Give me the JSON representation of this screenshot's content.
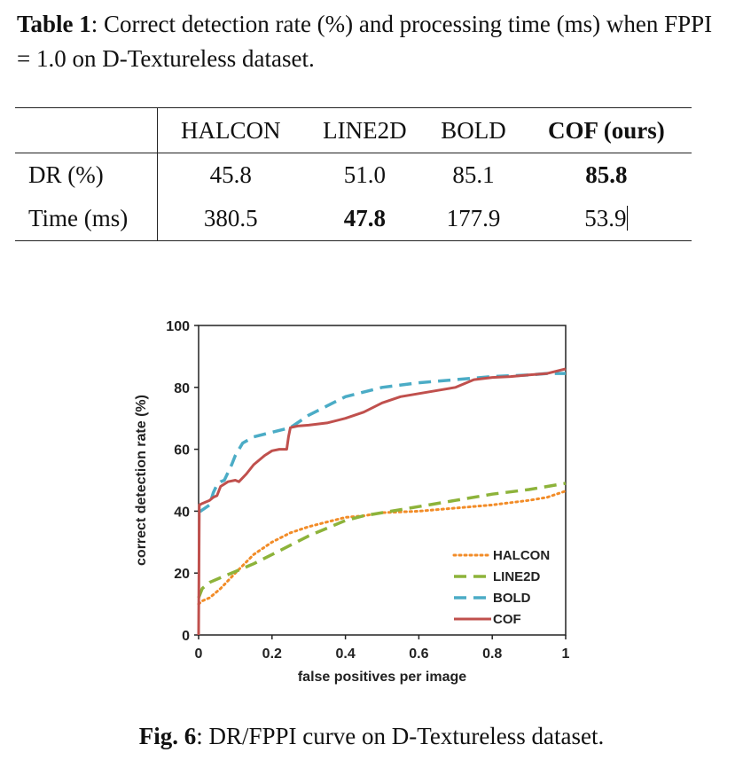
{
  "table_caption": {
    "label": "Table 1",
    "text": ": Correct detection rate (%) and processing time (ms) when FPPI = 1.0 on D-Textureless dataset."
  },
  "table": {
    "columns": [
      "",
      "HALCON",
      "LINE2D",
      "BOLD",
      "COF (ours)"
    ],
    "rows": [
      {
        "label": "DR (%)",
        "values": [
          "45.8",
          "51.0",
          "85.1",
          "85.8"
        ]
      },
      {
        "label": "Time (ms)",
        "values": [
          "380.5",
          "47.8",
          "177.9",
          "53.9"
        ]
      }
    ]
  },
  "chart_data": {
    "type": "line",
    "xlabel": "false positives per image",
    "ylabel": "correct detection rate (%)",
    "xlim": [
      0,
      1
    ],
    "ylim": [
      0,
      100
    ],
    "xticks": [
      "0",
      "0.2",
      "0.4",
      "0.6",
      "0.8",
      "1"
    ],
    "yticks": [
      "0",
      "20",
      "40",
      "60",
      "80",
      "100"
    ],
    "legend_position": "bottom-right",
    "series": [
      {
        "name": "HALCON",
        "color": "#F28C28",
        "style": "dotted",
        "x": [
          0.0,
          0.01,
          0.03,
          0.06,
          0.1,
          0.15,
          0.2,
          0.25,
          0.3,
          0.35,
          0.4,
          0.45,
          0.5,
          0.6,
          0.7,
          0.8,
          0.9,
          0.95,
          1.0
        ],
        "y": [
          10,
          11,
          12,
          15,
          20,
          26,
          30,
          33,
          35,
          36.5,
          38,
          38.5,
          39.5,
          40,
          41,
          42,
          43.5,
          44.5,
          46.5
        ]
      },
      {
        "name": "LINE2D",
        "color": "#8DB33A",
        "style": "dashed",
        "x": [
          0.0,
          0.01,
          0.03,
          0.06,
          0.1,
          0.15,
          0.2,
          0.3,
          0.4,
          0.45,
          0.5,
          0.6,
          0.7,
          0.8,
          0.9,
          1.0
        ],
        "y": [
          12,
          15,
          17,
          18.5,
          20.5,
          23,
          26,
          32,
          37,
          38.5,
          39.5,
          41.5,
          43.5,
          45.5,
          47,
          49
        ]
      },
      {
        "name": "BOLD",
        "color": "#4BACC6",
        "style": "dashed",
        "x": [
          0.0,
          0.005,
          0.03,
          0.04,
          0.05,
          0.06,
          0.07,
          0.09,
          0.1,
          0.12,
          0.15,
          0.2,
          0.25,
          0.3,
          0.35,
          0.4,
          0.5,
          0.6,
          0.7,
          0.8,
          0.9,
          0.95,
          1.0
        ],
        "y": [
          40,
          40,
          42,
          46,
          48.5,
          49.5,
          50,
          55,
          58,
          62,
          64,
          65.5,
          67,
          71,
          74,
          77,
          80,
          81.5,
          82.5,
          83.5,
          84,
          84.5,
          84.5
        ]
      },
      {
        "name": "COF",
        "color": "#C0504D",
        "style": "solid",
        "x": [
          0.0,
          0.002,
          0.01,
          0.03,
          0.04,
          0.05,
          0.06,
          0.08,
          0.1,
          0.11,
          0.13,
          0.15,
          0.18,
          0.2,
          0.22,
          0.24,
          0.245,
          0.25,
          0.27,
          0.3,
          0.35,
          0.4,
          0.45,
          0.5,
          0.55,
          0.6,
          0.65,
          0.7,
          0.75,
          0.8,
          0.85,
          0.9,
          0.95,
          1.0
        ],
        "y": [
          0,
          42,
          42.5,
          43.5,
          44.5,
          45,
          48,
          49.5,
          50,
          49.5,
          52,
          55,
          58,
          59.5,
          60,
          60,
          64,
          67,
          67.5,
          67.8,
          68.5,
          70,
          72,
          75,
          77,
          78,
          79,
          80,
          82.5,
          83.2,
          83.5,
          84,
          84.5,
          86
        ]
      }
    ]
  },
  "figure_caption": {
    "label": "Fig. 6",
    "text": ": DR/FPPI curve on D-Textureless dataset."
  }
}
